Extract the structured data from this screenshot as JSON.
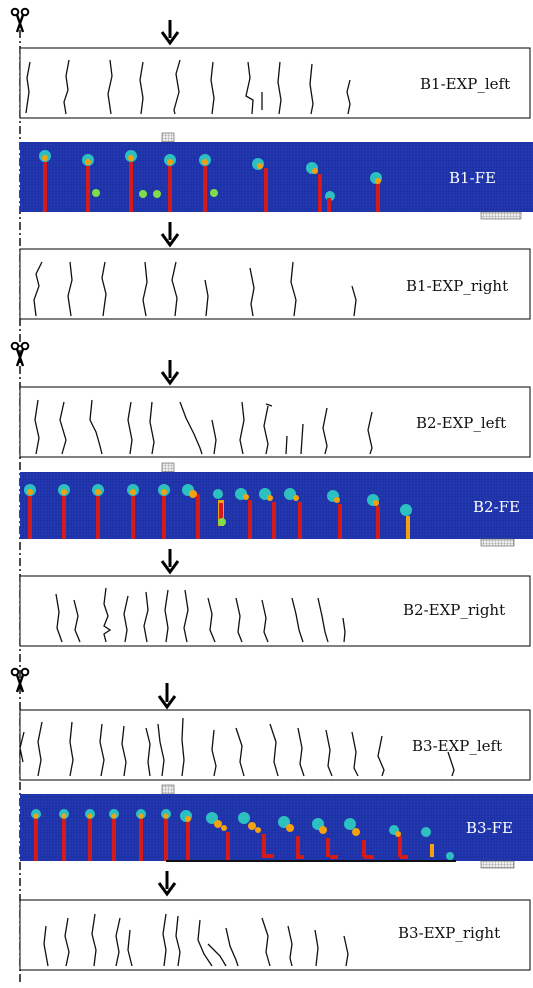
{
  "colors": {
    "fe_background": "#1e32a8",
    "fe_mesh": "#2f45c0",
    "crack_core": "#d51a1a",
    "crack_mid": "#f3a20f",
    "crack_tip": "#2cc0c0",
    "crack_halo": "#7fdc4a",
    "outline": "#000000",
    "support_plate": "#dddddd"
  },
  "icons": {
    "cut": "scissors-icon",
    "load": "down-arrow-icon",
    "axis": "dash-dot-symmetry-line"
  },
  "specimens": [
    {
      "id": "B1",
      "exp_left": "B1-EXP_left",
      "fe": "B1-FE",
      "exp_right": "B1-EXP_right"
    },
    {
      "id": "B2",
      "exp_left": "B2-EXP_left",
      "fe": "B2-FE",
      "exp_right": "B2-EXP_right"
    },
    {
      "id": "B3",
      "exp_left": "B3-EXP_left",
      "fe": "B3-FE",
      "exp_right": "B3-EXP_right"
    }
  ]
}
